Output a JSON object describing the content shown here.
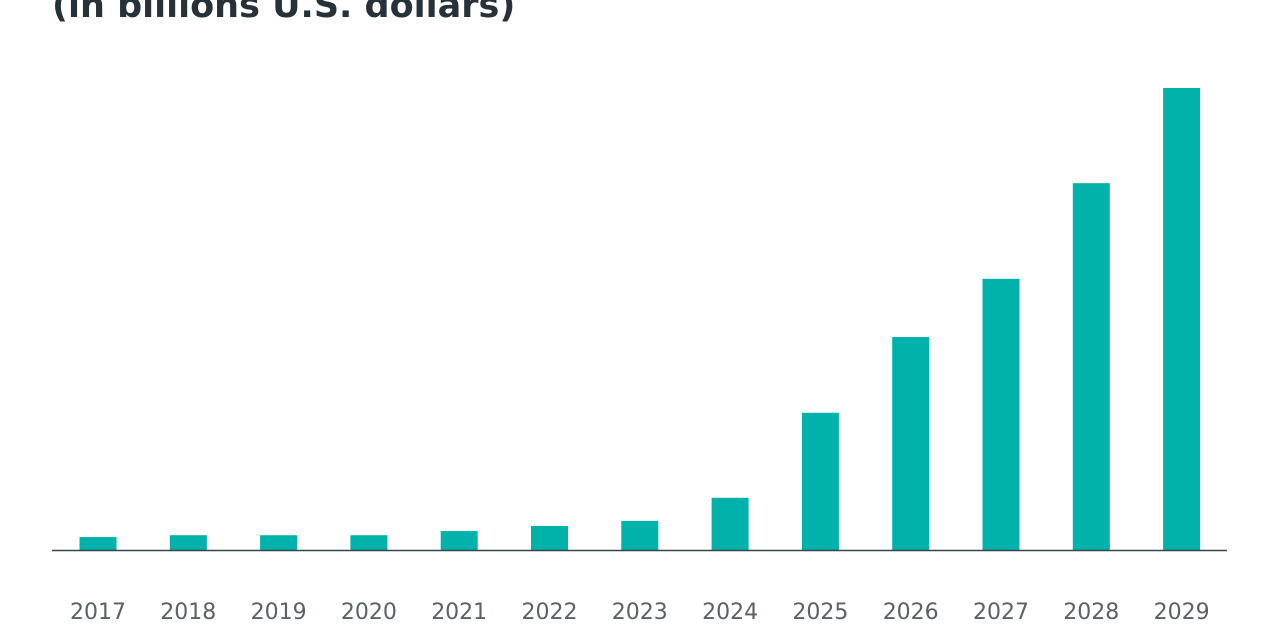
{
  "chart_data": {
    "type": "bar",
    "title": "(in billions U.S. dollars)",
    "categories": [
      "2017",
      "2018",
      "2019",
      "2020",
      "2021",
      "2022",
      "2023",
      "2024",
      "2025",
      "2026",
      "2027",
      "2028",
      "2029"
    ],
    "values": [
      2.8,
      3.2,
      3.2,
      3.2,
      4.1,
      5.2,
      6.3,
      11.3,
      29.7,
      46.1,
      58.7,
      79.4,
      100
    ],
    "ylim": [
      0,
      100
    ],
    "xlabel": "",
    "ylabel": "",
    "grid": false,
    "bar_color": "#00b2a9",
    "axis_color": "#37474f"
  }
}
